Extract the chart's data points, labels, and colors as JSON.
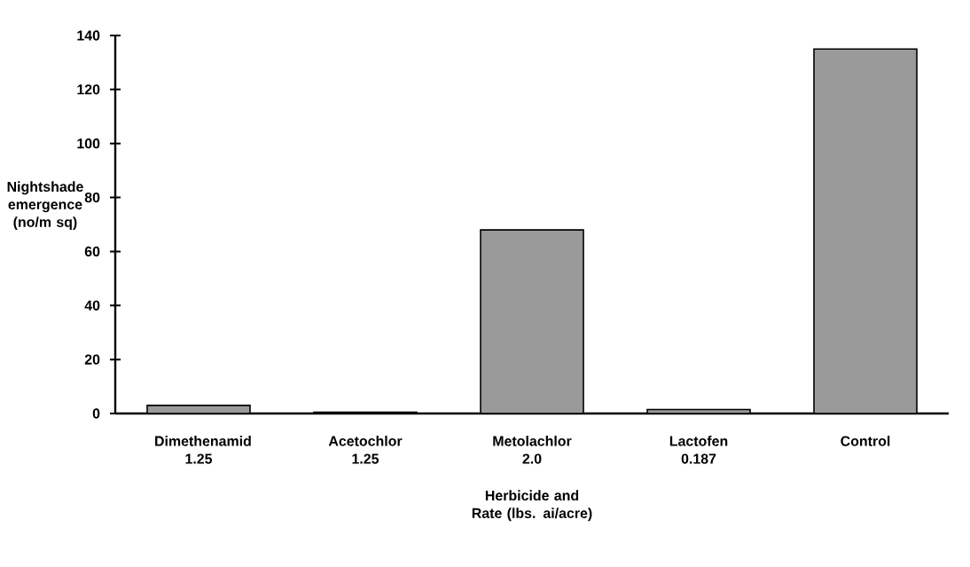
{
  "chart_data": {
    "type": "bar",
    "categories": [
      "Dimethenamid 1.25",
      "Acetochlor 1.25",
      "Metolachlor 2.0",
      "Lactofen 0.187",
      "Control"
    ],
    "values": [
      3,
      0.5,
      68,
      1.5,
      135
    ],
    "color": "#9a9a9a",
    "ylabel": "Nightshade emergence (no/m sq)",
    "xlabel": "Herbicide and Rate (lbs. ai/acre)",
    "ylim": [
      0,
      140
    ],
    "yticks": [
      0,
      20,
      40,
      60,
      80,
      100,
      120,
      140
    ]
  }
}
